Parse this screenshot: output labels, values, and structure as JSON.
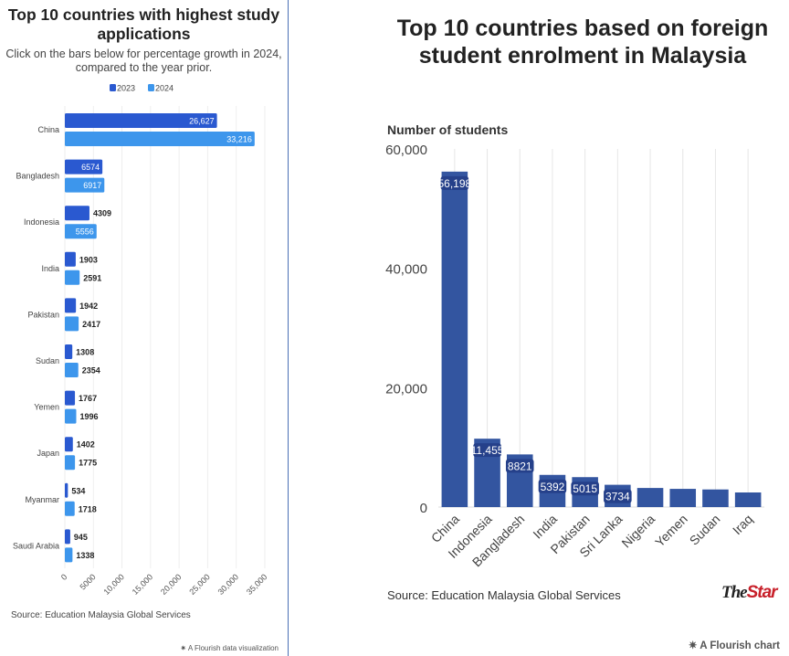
{
  "chart_data": [
    {
      "type": "bar",
      "orientation": "horizontal",
      "title": "Top 10 countries with highest study applications",
      "subtitle": "Click on the bars below for percentage growth in 2024, compared to the year prior.",
      "categories": [
        "China",
        "Bangladesh",
        "Indonesia",
        "India",
        "Pakistan",
        "Sudan",
        "Yemen",
        "Japan",
        "Myanmar",
        "Saudi Arabia"
      ],
      "series": [
        {
          "name": "2023",
          "color": "#2a59d0",
          "values": [
            26627,
            6574,
            4309,
            1903,
            1942,
            1308,
            1767,
            1402,
            534,
            945
          ],
          "labels": [
            "26,627",
            "6574",
            "4309",
            "1903",
            "1942",
            "1308",
            "1767",
            "1402",
            "534",
            "945"
          ]
        },
        {
          "name": "2024",
          "color": "#3d96ec",
          "values": [
            33216,
            6917,
            5556,
            2591,
            2417,
            2354,
            1996,
            1775,
            1718,
            1338
          ],
          "labels": [
            "33,216",
            "6917",
            "5556",
            "2591",
            "2417",
            "2354",
            "1996",
            "1775",
            "1718",
            "1338"
          ]
        }
      ],
      "xlim": [
        0,
        35000
      ],
      "xticks": [
        0,
        5000,
        10000,
        15000,
        20000,
        25000,
        30000,
        35000
      ],
      "xtick_labels": [
        "0",
        "5000",
        "10,000",
        "15,000",
        "20,000",
        "25,000",
        "30,000",
        "35,000"
      ],
      "legend": "top-center",
      "source": "Source: Education Malaysia Global Services",
      "credit": "A Flourish data visualization"
    },
    {
      "type": "bar",
      "title": "Top 10 countries based on foreign student enrolment in Malaysia",
      "ylabel": "Number of students",
      "color": "#3355a0",
      "categories": [
        "China",
        "Indonesia",
        "Bangladesh",
        "India",
        "Pakistan",
        "Sri Lanka",
        "Nigeria",
        "Yemen",
        "Sudan",
        "Iraq"
      ],
      "values": [
        56198,
        11455,
        8821,
        5392,
        5015,
        3734,
        3200,
        3050,
        2950,
        2450
      ],
      "labels": [
        "56,198",
        "11,455",
        "8821",
        "5392",
        "5015",
        "3734",
        "",
        "",
        "",
        ""
      ],
      "ylim": [
        0,
        60000
      ],
      "yticks": [
        0,
        20000,
        40000,
        60000
      ],
      "ytick_labels": [
        "0",
        "20,000",
        "40,000",
        "60,000"
      ],
      "source": "Source: Education Malaysia Global Services",
      "brand": "TheStar",
      "credit": "A Flourish chart"
    }
  ]
}
